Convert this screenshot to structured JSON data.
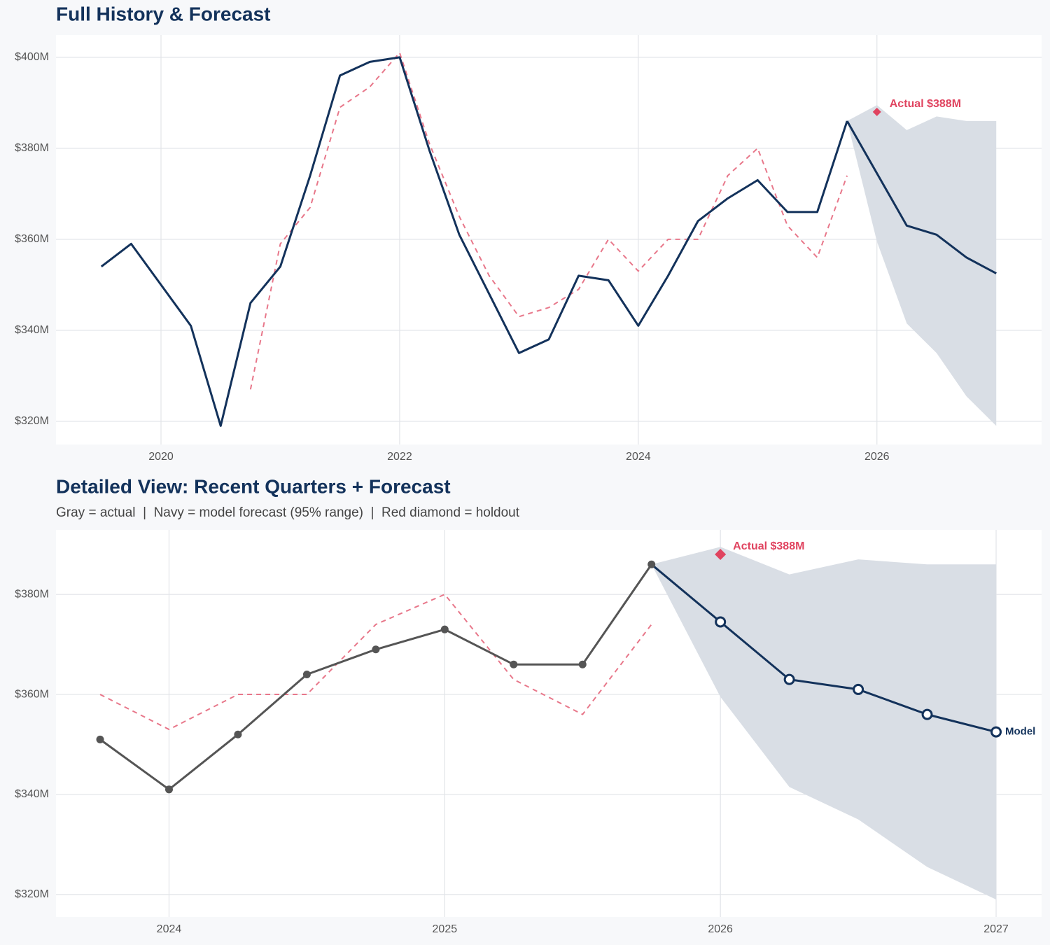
{
  "chart_data": [
    {
      "type": "line",
      "title": "Full History & Forecast",
      "xlim": [
        2019.12,
        2027.38
      ],
      "xticks": [
        2020,
        2022,
        2024,
        2026
      ],
      "ylim": [
        314.9,
        404.9
      ],
      "yticks": [
        {
          "value": 320,
          "label": "$320M"
        },
        {
          "value": 340,
          "label": "$340M"
        },
        {
          "value": 360,
          "label": "$360M"
        },
        {
          "value": 380,
          "label": "$380M"
        },
        {
          "value": 400,
          "label": "$400M"
        }
      ],
      "grid": true,
      "band": {
        "color": "#d9dee5",
        "x": [
          2025.75,
          2026,
          2026.25,
          2026.5,
          2026.75,
          2027
        ],
        "lower": [
          386,
          359.5,
          341.5,
          335,
          325.5,
          319
        ],
        "upper": [
          386,
          389.5,
          384,
          387,
          386,
          386
        ]
      },
      "series": [
        {
          "color": "#e8778a",
          "dash": true,
          "x": [
            2020.75,
            2021,
            2021.25,
            2021.5,
            2021.75,
            2022,
            2022.25,
            2022.5,
            2022.75,
            2023,
            2023.25,
            2023.5,
            2023.75,
            2024,
            2024.25,
            2024.5,
            2024.75,
            2025,
            2025.25,
            2025.5,
            2025.75
          ],
          "values": [
            327,
            359,
            367,
            389,
            393.5,
            401,
            381,
            365,
            352,
            343,
            345,
            349,
            360,
            353,
            360,
            360,
            374,
            380,
            363,
            356,
            374
          ]
        },
        {
          "color": "#13325b",
          "x": [
            2025.75,
            2026,
            2026.25,
            2026.5,
            2026.75,
            2027
          ],
          "values": [
            386,
            374.5,
            363,
            361,
            356,
            352.5
          ]
        },
        {
          "color": "#13325b",
          "x": [
            2019.5,
            2019.75,
            2020,
            2020.25,
            2020.5,
            2020.75,
            2021,
            2021.25,
            2021.5,
            2021.75,
            2022,
            2022.25,
            2022.5,
            2022.75,
            2023,
            2023.25,
            2023.5,
            2023.75,
            2024,
            2024.25,
            2024.5,
            2024.75,
            2025,
            2025.25,
            2025.5,
            2025.75
          ],
          "values": [
            354,
            359,
            350,
            341,
            319,
            346,
            354,
            374,
            396,
            399,
            400,
            379.5,
            361,
            348,
            335,
            338,
            352,
            351,
            341,
            352,
            364,
            369,
            373,
            366,
            366,
            386
          ]
        }
      ],
      "holdout": {
        "x": 2026,
        "value": 388,
        "label": "Actual $388M",
        "color": "#e0435f"
      }
    },
    {
      "type": "line",
      "title": "Detailed View: Recent Quarters + Forecast",
      "subtitle": "Gray = actual  |  Navy = model forecast (95% range)  |  Red diamond = holdout",
      "xlim": [
        2023.59,
        2027.165
      ],
      "xticks": [
        2024,
        2025,
        2026,
        2027
      ],
      "ylim": [
        315.5,
        392.9
      ],
      "yticks": [
        {
          "value": 320,
          "label": "$320M"
        },
        {
          "value": 340,
          "label": "$340M"
        },
        {
          "value": 360,
          "label": "$360M"
        },
        {
          "value": 380,
          "label": "$380M"
        }
      ],
      "grid": true,
      "band": {
        "color": "#d9dee5",
        "x": [
          2025.75,
          2026,
          2026.25,
          2026.5,
          2026.75,
          2027
        ],
        "lower": [
          386,
          359.5,
          341.5,
          335,
          325.5,
          319
        ],
        "upper": [
          386,
          389.5,
          384,
          387,
          386,
          386
        ]
      },
      "series": [
        {
          "color": "#e8778a",
          "dash": true,
          "x": [
            2023.75,
            2024,
            2024.25,
            2024.5,
            2024.75,
            2025,
            2025.25,
            2025.5,
            2025.75
          ],
          "values": [
            360,
            353,
            360,
            360,
            374,
            380,
            363,
            356,
            374
          ]
        },
        {
          "name": "Model",
          "color": "#13325b",
          "marker": "open",
          "x": [
            2025.75,
            2026,
            2026.25,
            2026.5,
            2026.75,
            2027
          ],
          "values": [
            386,
            374.5,
            363,
            361,
            356,
            352.5
          ]
        },
        {
          "color": "#555555",
          "marker": "dot",
          "x": [
            2023.75,
            2024,
            2024.25,
            2024.5,
            2024.75,
            2025,
            2025.25,
            2025.5,
            2025.75
          ],
          "values": [
            351,
            341,
            352,
            364,
            369,
            373,
            366,
            366,
            386
          ]
        }
      ],
      "holdout": {
        "x": 2026,
        "value": 388,
        "label": "Actual $388M",
        "color": "#e0435f"
      }
    }
  ]
}
